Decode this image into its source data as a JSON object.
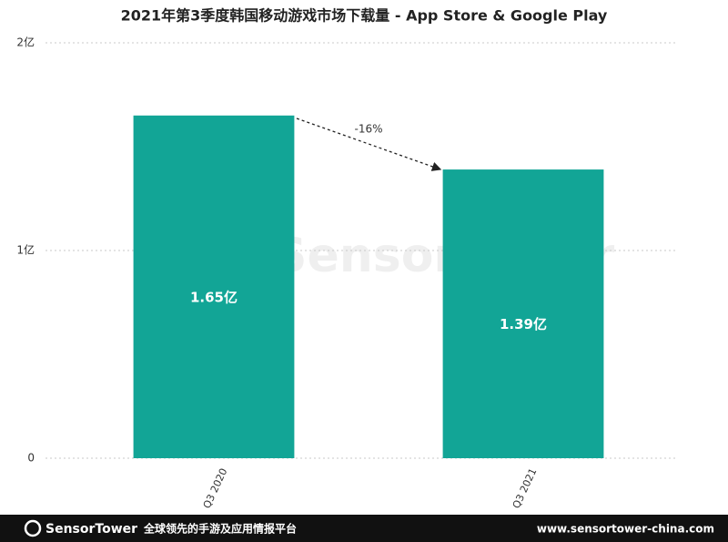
{
  "chart_data": {
    "type": "bar",
    "title": "2021年第3季度韩国移动游戏市场下载量 - App Store & Google Play",
    "categories": [
      "Q3 2020",
      "Q3 2021"
    ],
    "values": [
      1.65,
      1.39
    ],
    "value_labels": [
      "1.65亿",
      "1.39亿"
    ],
    "color": "#12a596",
    "ylim": [
      0,
      2
    ],
    "yticks": [
      0,
      {
        "value": 1,
        "label": "1亿"
      },
      {
        "value": 2,
        "label": "2亿"
      }
    ],
    "grid": true,
    "annotation": "-16%",
    "watermark": "SensorTower"
  },
  "footer": {
    "brand": "SensorTower",
    "tagline": "全球领先的手游及应用情报平台",
    "url": "www.sensortower-china.com"
  }
}
